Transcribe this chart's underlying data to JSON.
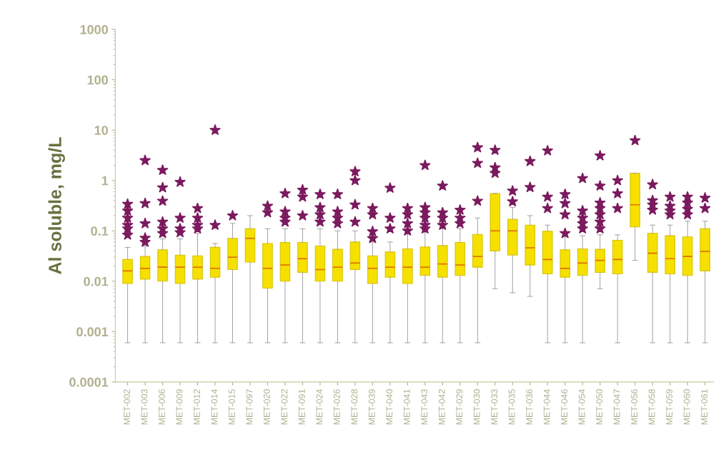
{
  "chart_data": {
    "type": "box",
    "ylabel": "Al soluble, mg/L",
    "log": "y",
    "grid": false,
    "marker": "star",
    "color": "#f5e000",
    "ylim": [
      0.0001,
      1000
    ],
    "yticks": [
      0.0001,
      0.001,
      0.01,
      0.1,
      1,
      10,
      100,
      1000
    ],
    "categories": [
      "MET-002",
      "MET-003",
      "MET-006",
      "MET-009",
      "MET-012",
      "MET-014",
      "MET-015",
      "MET-097",
      "MET-020",
      "MET-022",
      "MET-091",
      "MET-024",
      "MET-026",
      "MET-028",
      "MET-039",
      "MET-040",
      "MET-041",
      "MET-043",
      "MET-042",
      "MET-029",
      "MET-030",
      "MET-033",
      "MET-035",
      "MET-036",
      "MET-044",
      "MET-046",
      "MET-054",
      "MET-050",
      "MET-047",
      "MET-056",
      "MET-058",
      "MET-059",
      "MET-060",
      "MET-061"
    ],
    "boxes": [
      {
        "low": 0.0006,
        "q1": 0.009,
        "median": 0.016,
        "q3": 0.027,
        "high": 0.047,
        "outliers": [
          0.34,
          0.25,
          0.18,
          0.13,
          0.11,
          0.083
        ]
      },
      {
        "low": 0.0006,
        "q1": 0.011,
        "median": 0.018,
        "q3": 0.031,
        "high": 0.05,
        "outliers": [
          2.5,
          0.35,
          0.14,
          0.072,
          0.06
        ]
      },
      {
        "low": 0.0006,
        "q1": 0.01,
        "median": 0.019,
        "q3": 0.042,
        "high": 0.069,
        "outliers": [
          1.6,
          0.72,
          0.39,
          0.15,
          0.11,
          0.089
        ]
      },
      {
        "low": 0.0006,
        "q1": 0.009,
        "median": 0.019,
        "q3": 0.033,
        "high": 0.069,
        "outliers": [
          0.93,
          0.18,
          0.11,
          0.093
        ]
      },
      {
        "low": 0.0006,
        "q1": 0.011,
        "median": 0.019,
        "q3": 0.032,
        "high": 0.089,
        "outliers": [
          0.28,
          0.18,
          0.13,
          0.11
        ]
      },
      {
        "low": 0.0006,
        "q1": 0.012,
        "median": 0.018,
        "q3": 0.047,
        "high": 0.056,
        "outliers": [
          10,
          0.13
        ]
      },
      {
        "low": 0.0006,
        "q1": 0.017,
        "median": 0.03,
        "q3": 0.071,
        "high": 0.14,
        "outliers": [
          0.2
        ]
      },
      {
        "low": 0.0006,
        "q1": 0.024,
        "median": 0.071,
        "q3": 0.11,
        "high": 0.2
      },
      {
        "low": 0.0006,
        "q1": 0.0073,
        "median": 0.018,
        "q3": 0.056,
        "high": 0.11,
        "outliers": [
          0.31,
          0.23
        ]
      },
      {
        "low": 0.0006,
        "q1": 0.01,
        "median": 0.021,
        "q3": 0.059,
        "high": 0.11,
        "outliers": [
          0.55,
          0.24,
          0.18,
          0.15
        ]
      },
      {
        "low": 0.0006,
        "q1": 0.015,
        "median": 0.028,
        "q3": 0.059,
        "high": 0.11,
        "outliers": [
          0.65,
          0.47,
          0.2
        ]
      },
      {
        "low": 0.0006,
        "q1": 0.01,
        "median": 0.017,
        "q3": 0.05,
        "high": 0.11,
        "outliers": [
          0.53,
          0.29,
          0.21,
          0.15
        ]
      },
      {
        "low": 0.0006,
        "q1": 0.01,
        "median": 0.019,
        "q3": 0.043,
        "high": 0.1,
        "outliers": [
          0.53,
          0.24,
          0.18,
          0.14
        ]
      },
      {
        "low": 0.0006,
        "q1": 0.017,
        "median": 0.023,
        "q3": 0.06,
        "high": 0.1,
        "outliers": [
          1.5,
          1.0,
          0.33,
          0.15
        ]
      },
      {
        "low": 0.0006,
        "q1": 0.009,
        "median": 0.018,
        "q3": 0.032,
        "high": 0.06,
        "outliers": [
          0.28,
          0.21,
          0.097,
          0.071
        ]
      },
      {
        "low": 0.0006,
        "q1": 0.012,
        "median": 0.019,
        "q3": 0.038,
        "high": 0.06,
        "outliers": [
          0.71,
          0.18,
          0.11
        ]
      },
      {
        "low": 0.0006,
        "q1": 0.009,
        "median": 0.019,
        "q3": 0.044,
        "high": 0.093,
        "outliers": [
          0.28,
          0.21,
          0.14,
          0.1
        ]
      },
      {
        "low": 0.0006,
        "q1": 0.013,
        "median": 0.019,
        "q3": 0.048,
        "high": 0.093,
        "outliers": [
          2.0,
          0.29,
          0.23,
          0.18,
          0.13,
          0.11
        ]
      },
      {
        "low": 0.0006,
        "q1": 0.012,
        "median": 0.022,
        "q3": 0.051,
        "high": 0.11,
        "outliers": [
          0.78,
          0.23,
          0.18,
          0.13
        ]
      },
      {
        "low": 0.0006,
        "q1": 0.013,
        "median": 0.021,
        "q3": 0.059,
        "high": 0.11,
        "outliers": [
          0.26,
          0.18,
          0.14
        ]
      },
      {
        "low": 0.0006,
        "q1": 0.019,
        "median": 0.031,
        "q3": 0.085,
        "high": 0.18,
        "outliers": [
          4.5,
          2.2,
          0.39
        ]
      },
      {
        "low": 0.0071,
        "q1": 0.04,
        "median": 0.1,
        "q3": 0.55,
        "high": 0.55,
        "outliers": [
          4.0,
          1.8,
          1.4
        ]
      },
      {
        "low": 0.0059,
        "q1": 0.033,
        "median": 0.1,
        "q3": 0.17,
        "high": 0.29,
        "outliers": [
          0.62,
          0.38
        ]
      },
      {
        "low": 0.005,
        "q1": 0.021,
        "median": 0.046,
        "q3": 0.13,
        "high": 0.2,
        "outliers": [
          2.4,
          0.73
        ]
      },
      {
        "low": 0.0006,
        "q1": 0.014,
        "median": 0.027,
        "q3": 0.098,
        "high": 0.13,
        "outliers": [
          3.9,
          0.47,
          0.28
        ]
      },
      {
        "low": 0.0006,
        "q1": 0.012,
        "median": 0.018,
        "q3": 0.042,
        "high": 0.076,
        "outliers": [
          0.53,
          0.35,
          0.21,
          0.089
        ]
      },
      {
        "low": 0.0006,
        "q1": 0.013,
        "median": 0.023,
        "q3": 0.044,
        "high": 0.08,
        "outliers": [
          1.1,
          0.25,
          0.18,
          0.14,
          0.11
        ]
      },
      {
        "low": 0.0071,
        "q1": 0.015,
        "median": 0.026,
        "q3": 0.043,
        "high": 0.083,
        "outliers": [
          3.1,
          0.78,
          0.36,
          0.28,
          0.21,
          0.15,
          0.11
        ]
      },
      {
        "low": 0.0006,
        "q1": 0.014,
        "median": 0.027,
        "q3": 0.065,
        "high": 0.083,
        "outliers": [
          1.0,
          0.55,
          0.28
        ]
      },
      {
        "low": 0.026,
        "q1": 0.12,
        "median": 0.33,
        "q3": 1.4,
        "high": 1.4,
        "outliers": [
          6.2
        ]
      },
      {
        "low": 0.0006,
        "q1": 0.015,
        "median": 0.036,
        "q3": 0.089,
        "high": 0.13,
        "outliers": [
          0.83,
          0.4,
          0.33,
          0.26
        ]
      },
      {
        "low": 0.0006,
        "q1": 0.014,
        "median": 0.028,
        "q3": 0.08,
        "high": 0.13,
        "outliers": [
          0.47,
          0.31,
          0.25,
          0.21
        ]
      },
      {
        "low": 0.0006,
        "q1": 0.013,
        "median": 0.031,
        "q3": 0.076,
        "high": 0.155,
        "outliers": [
          0.47,
          0.36,
          0.27,
          0.21
        ]
      },
      {
        "low": 0.0006,
        "q1": 0.016,
        "median": 0.039,
        "q3": 0.11,
        "high": 0.155,
        "outliers": [
          0.45,
          0.28
        ]
      }
    ]
  }
}
